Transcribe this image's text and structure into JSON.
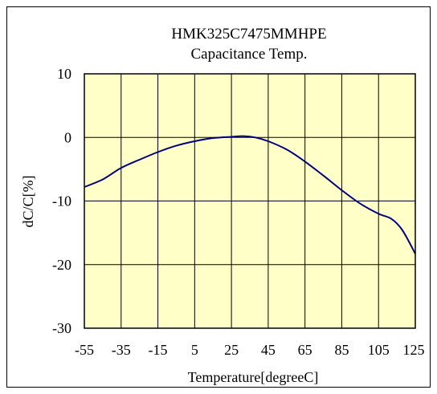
{
  "chart_data": {
    "type": "line",
    "title": "HMK325C7475MMHPE",
    "subtitle": "Capacitance Temp.",
    "xlabel": "Temperature[degreeC]",
    "ylabel": "dC/C[%]",
    "xlim": [
      -55,
      125
    ],
    "ylim": [
      -30,
      10
    ],
    "x_ticks": [
      -55,
      -35,
      -15,
      5,
      25,
      45,
      65,
      85,
      105,
      125
    ],
    "x_tick_labels": [
      "-55",
      "-35",
      "-15",
      "5",
      "25",
      "45",
      "65",
      "85",
      "105",
      "125"
    ],
    "y_ticks": [
      10,
      0,
      -10,
      -20,
      -30
    ],
    "y_tick_labels": [
      "10",
      "0",
      "-10",
      "-20",
      "-30"
    ],
    "grid": true,
    "legend": "none",
    "colors": {
      "plot_background": "#ffffc8",
      "line": "#000080",
      "grid": "#000000"
    },
    "series": [
      {
        "x": [
          -55,
          -45,
          -35,
          -25,
          -15,
          -5,
          5,
          15,
          25,
          32,
          38,
          45,
          55,
          65,
          75,
          85,
          95,
          105,
          112,
          118,
          125
        ],
        "y": [
          -7.8,
          -6.6,
          -4.8,
          -3.5,
          -2.3,
          -1.3,
          -0.6,
          -0.1,
          0.1,
          0.2,
          0.0,
          -0.6,
          -1.9,
          -3.8,
          -6.0,
          -8.3,
          -10.4,
          -12.0,
          -12.8,
          -14.6,
          -18.3
        ]
      }
    ]
  }
}
